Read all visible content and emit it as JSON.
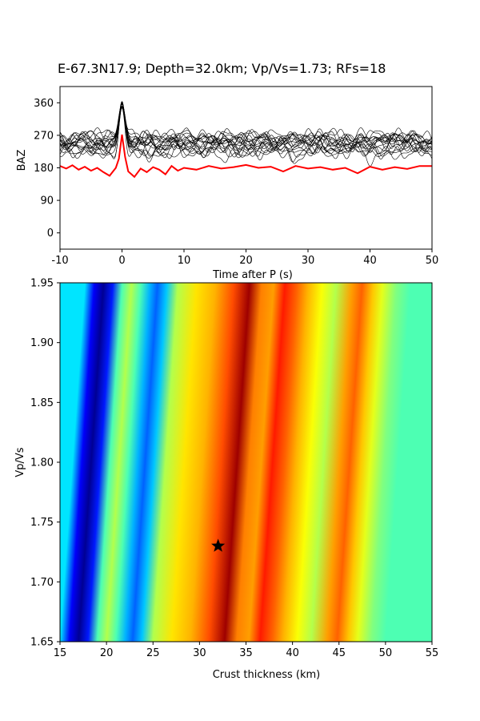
{
  "figure_title": "E-67.3N17.9; Depth=32.0km; Vp/Vs=1.73; RFs=18",
  "chart_data": [
    {
      "type": "line",
      "name": "rf-traces",
      "title": "E-67.3N17.9; Depth=32.0km; Vp/Vs=1.73; RFs=18",
      "xlabel": "Time after P (s)",
      "ylabel": "BAZ",
      "xlim": [
        -10,
        50
      ],
      "ylim": [
        -45,
        405
      ],
      "x_ticks": [
        -10,
        0,
        10,
        20,
        30,
        40,
        50
      ],
      "y_ticks": [
        0,
        90,
        180,
        270,
        360
      ],
      "grid": false,
      "trace_count": 18,
      "trace_color": "#000000",
      "stack_color": "#ff0000",
      "stack": {
        "baseline": 180,
        "x": [
          -10,
          -9,
          -8,
          -7,
          -6,
          -5,
          -4,
          -3,
          -2,
          -1,
          -0.5,
          0,
          0.5,
          1,
          2,
          3,
          4,
          5,
          6,
          7,
          8,
          9,
          10,
          12,
          14,
          16,
          18,
          20,
          22,
          24,
          26,
          28,
          30,
          32,
          34,
          36,
          38,
          40,
          42,
          44,
          46,
          48,
          50
        ],
        "y": [
          185,
          178,
          187,
          175,
          183,
          172,
          180,
          168,
          158,
          180,
          205,
          272,
          210,
          170,
          155,
          178,
          168,
          182,
          175,
          162,
          185,
          172,
          180,
          175,
          185,
          178,
          182,
          188,
          180,
          183,
          170,
          185,
          178,
          182,
          175,
          180,
          165,
          183,
          175,
          182,
          177,
          185,
          185
        ]
      }
    },
    {
      "type": "heatmap",
      "name": "h-k-stack",
      "xlabel": "Crust thickness (km)",
      "ylabel": "Vp/Vs",
      "xlim": [
        15,
        55
      ],
      "ylim": [
        1.65,
        1.95
      ],
      "x_ticks": [
        15,
        20,
        25,
        30,
        35,
        40,
        45,
        50,
        55
      ],
      "y_ticks": [
        1.65,
        1.7,
        1.75,
        1.8,
        1.85,
        1.9,
        1.95
      ],
      "colormap": "jet",
      "grid": false,
      "best_estimate": {
        "thickness_km": 32.0,
        "vp_vs": 1.73
      },
      "profile_at_vp_vs_1_65": {
        "x": [
          15,
          16,
          17,
          18,
          19,
          20,
          21,
          22,
          22.8,
          23.8,
          25,
          27,
          29,
          31,
          32.7,
          34,
          35.3,
          36.5,
          37.8,
          39,
          40.5,
          42,
          43.7,
          44.8,
          46,
          47,
          48.5,
          50,
          55
        ],
        "v": [
          0.35,
          0.12,
          0.02,
          0.15,
          0.45,
          0.55,
          0.45,
          0.3,
          0.22,
          0.32,
          0.55,
          0.65,
          0.7,
          0.8,
          0.97,
          0.75,
          0.72,
          0.85,
          0.78,
          0.7,
          0.62,
          0.55,
          0.72,
          0.78,
          0.68,
          0.6,
          0.5,
          0.45,
          0.45
        ]
      }
    }
  ]
}
